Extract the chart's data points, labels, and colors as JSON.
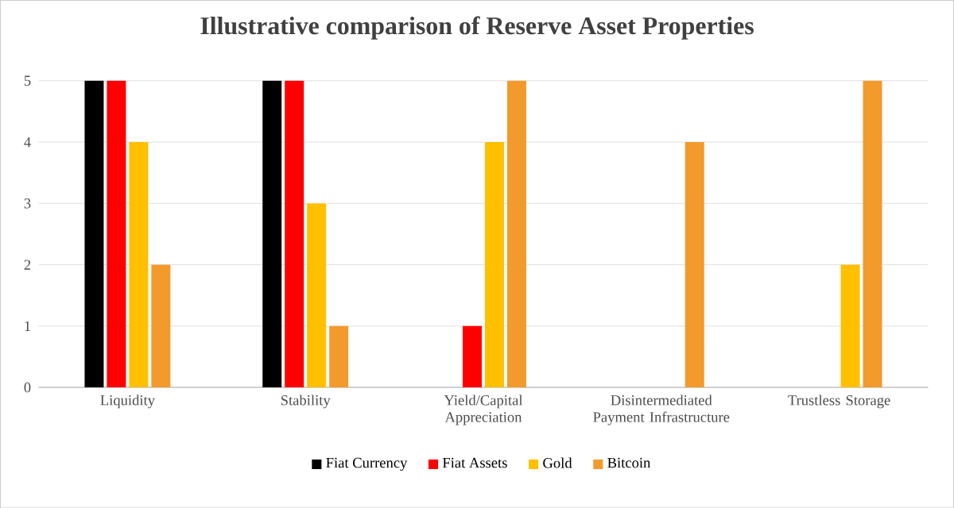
{
  "chart_data": {
    "type": "bar",
    "title": "Illustrative comparison of Reserve Asset Properties",
    "categories": [
      "Liquidity",
      "Stability",
      "Yield/Capital Appreciation",
      "Disintermediated Payment Infrastructure",
      "Trustless Storage"
    ],
    "series": [
      {
        "name": "Fiat Currency",
        "color": "#000000",
        "values": [
          5,
          5,
          0,
          0,
          0
        ]
      },
      {
        "name": "Fiat Assets",
        "color": "#ff0000",
        "values": [
          5,
          5,
          1,
          0,
          0
        ]
      },
      {
        "name": "Gold",
        "color": "#ffc000",
        "values": [
          4,
          3,
          4,
          0,
          2
        ]
      },
      {
        "name": "Bitcoin",
        "color": "#f39a2c",
        "values": [
          2,
          1,
          5,
          4,
          5
        ]
      }
    ],
    "ylim": [
      0,
      5
    ],
    "yticks": [
      0,
      1,
      2,
      3,
      4,
      5
    ],
    "grid": "y",
    "legend": "bottom"
  }
}
